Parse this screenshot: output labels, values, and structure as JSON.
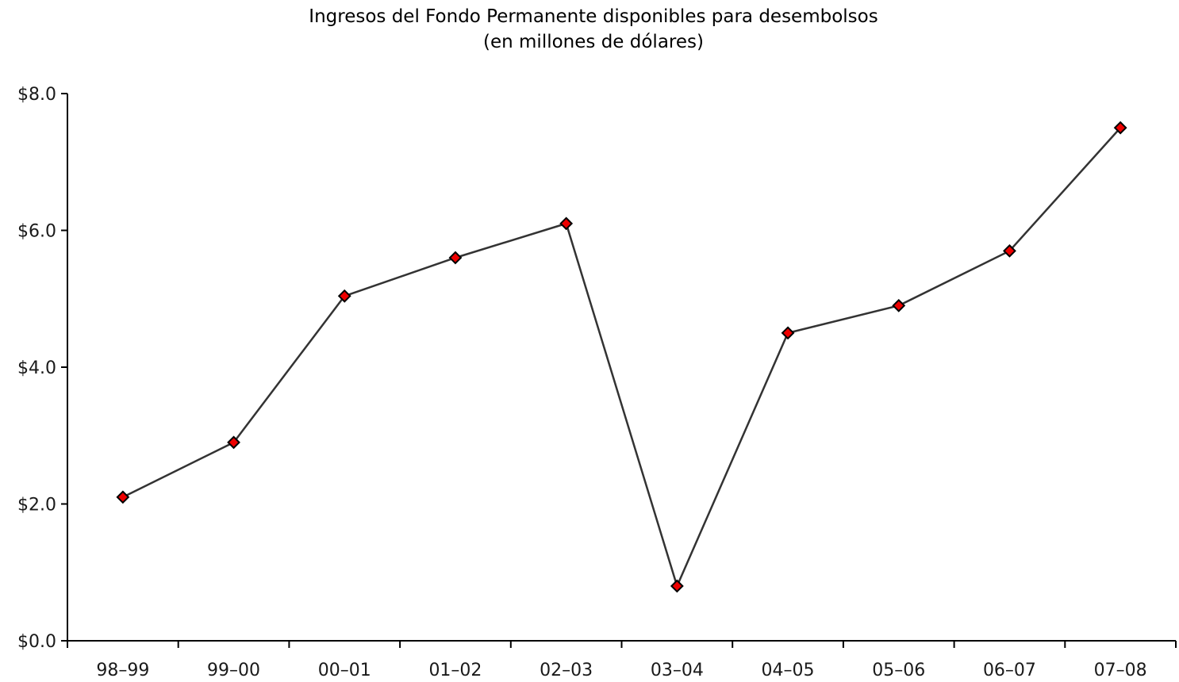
{
  "chart_data": {
    "type": "line",
    "title": "Ingresos del Fondo Permanente disponibles para desembolsos",
    "subtitle": "(en millones de dólares)",
    "xlabel": "",
    "ylabel": "",
    "categories": [
      "98–99",
      "99–00",
      "00–01",
      "01–02",
      "02–03",
      "03–04",
      "04–05",
      "05–06",
      "06–07",
      "07–08"
    ],
    "series": [
      {
        "values": [
          2.1,
          2.9,
          5.04,
          5.6,
          6.1,
          0.8,
          4.5,
          4.9,
          5.7,
          7.5
        ]
      }
    ],
    "ylim": [
      0,
      8
    ],
    "yticks": [
      0,
      2,
      4,
      6,
      8
    ],
    "ytick_labels": [
      "$0.0",
      "$2.0",
      "$4.0",
      "$6.0",
      "$8.0"
    ],
    "grid": false,
    "legend": "none",
    "colors": {
      "line": "#333333",
      "marker_fill": "#ee0000",
      "marker_edge": "#000000",
      "axis": "#000000"
    },
    "marker": "diamond-icon"
  }
}
